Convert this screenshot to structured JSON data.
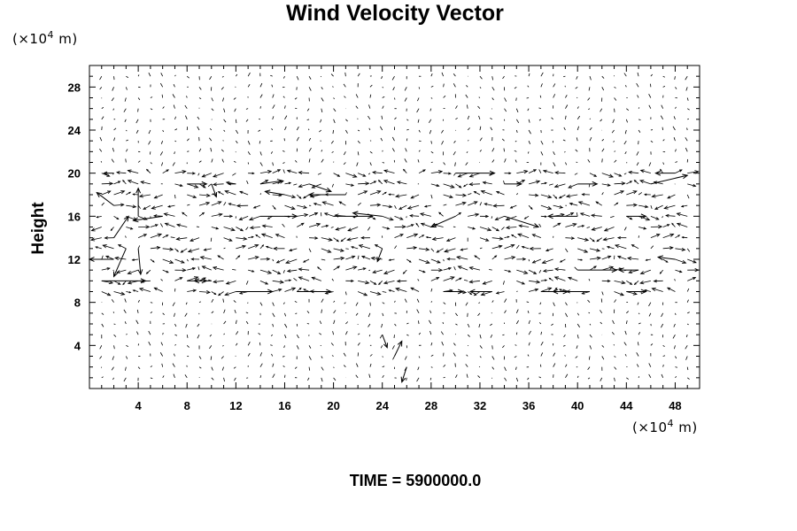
{
  "chart_data": {
    "type": "vector",
    "title": "Wind Velocity Vector",
    "ylabel": "Height",
    "xlabel": "",
    "x_unit": "(×10",
    "y_unit": "(×10",
    "unit_exponent": "4",
    "unit_tail": " m)",
    "time_label": "TIME = 5900000.0",
    "xlim": [
      0,
      50
    ],
    "ylim": [
      0,
      30
    ],
    "x_ticks": [
      4,
      8,
      12,
      16,
      20,
      24,
      28,
      32,
      36,
      40,
      44,
      48
    ],
    "y_ticks": [
      4,
      8,
      12,
      16,
      20,
      24,
      28
    ],
    "grid": false,
    "vectors": [
      {
        "x": 2,
        "y": 20,
        "u": -0.8,
        "v": 0
      },
      {
        "x": 8,
        "y": 19,
        "u": 1.6,
        "v": 0
      },
      {
        "x": 10,
        "y": 19,
        "u": 0.4,
        "v": -1.2
      },
      {
        "x": 12,
        "y": 19,
        "u": -0.6,
        "v": 0
      },
      {
        "x": 14,
        "y": 19,
        "u": 1.8,
        "v": 0.3
      },
      {
        "x": 16,
        "y": 18,
        "u": -1.6,
        "v": 0.3
      },
      {
        "x": 18,
        "y": 19,
        "u": 1.8,
        "v": -0.7
      },
      {
        "x": 21,
        "y": 18,
        "u": -3.0,
        "v": 0
      },
      {
        "x": 30,
        "y": 20,
        "u": 3.2,
        "v": 0
      },
      {
        "x": 34,
        "y": 19,
        "u": 1.4,
        "v": 0
      },
      {
        "x": 40,
        "y": 19,
        "u": 1.6,
        "v": 0
      },
      {
        "x": 46,
        "y": 19,
        "u": 3.0,
        "v": 0.8
      },
      {
        "x": 48,
        "y": 20,
        "u": -1.6,
        "v": 0
      },
      {
        "x": 6,
        "y": 16,
        "u": -2.4,
        "v": -0.4
      },
      {
        "x": 14,
        "y": 16,
        "u": 3.0,
        "v": 0
      },
      {
        "x": 20,
        "y": 16,
        "u": 3.2,
        "v": 0
      },
      {
        "x": 24,
        "y": 16,
        "u": -2.4,
        "v": 0.3
      },
      {
        "x": 30,
        "y": 16,
        "u": -2.0,
        "v": -1.0
      },
      {
        "x": 34,
        "y": 16,
        "u": 2.8,
        "v": -1.0
      },
      {
        "x": 40,
        "y": 16,
        "u": -2.4,
        "v": 0
      },
      {
        "x": 44,
        "y": 16,
        "u": 1.6,
        "v": 0
      },
      {
        "x": 24,
        "y": 13,
        "u": -0.4,
        "v": -1.2
      },
      {
        "x": 48,
        "y": 12,
        "u": -1.4,
        "v": 0.2
      },
      {
        "x": 1,
        "y": 10,
        "u": 3.6,
        "v": 0
      },
      {
        "x": 8,
        "y": 10,
        "u": 1.6,
        "v": 0
      },
      {
        "x": 10,
        "y": 10,
        "u": -1.4,
        "v": 0
      },
      {
        "x": 12,
        "y": 9,
        "u": 3.0,
        "v": 0
      },
      {
        "x": 17,
        "y": 9,
        "u": 2.8,
        "v": 0
      },
      {
        "x": 29,
        "y": 9,
        "u": 1.6,
        "v": 0
      },
      {
        "x": 33,
        "y": 9,
        "u": -1.8,
        "v": 0
      },
      {
        "x": 37,
        "y": 9,
        "u": 2.2,
        "v": 0
      },
      {
        "x": 41,
        "y": 9,
        "u": -3.0,
        "v": 0
      },
      {
        "x": 44,
        "y": 9,
        "u": 1.6,
        "v": 0
      },
      {
        "x": 40,
        "y": 11,
        "u": 3.2,
        "v": 0
      },
      {
        "x": 45,
        "y": 11,
        "u": -1.6,
        "v": 0
      },
      {
        "x": 2,
        "y": 17,
        "u": -1.4,
        "v": 1.2
      },
      {
        "x": 2,
        "y": 14,
        "u": 1.2,
        "v": 2.0
      },
      {
        "x": 3,
        "y": 13,
        "u": -1.0,
        "v": -2.6
      },
      {
        "x": 4,
        "y": 16,
        "u": 0,
        "v": 2.6
      },
      {
        "x": 4,
        "y": 13,
        "u": 0.2,
        "v": -2.4
      },
      {
        "x": 2,
        "y": 12,
        "u": -2.0,
        "v": 0
      },
      {
        "x": 25,
        "y": 3,
        "u": 0.6,
        "v": 1.4
      },
      {
        "x": 26,
        "y": 2,
        "u": -0.4,
        "v": -1.4
      },
      {
        "x": 24,
        "y": 5,
        "u": 0.4,
        "v": -1.2
      }
    ]
  }
}
